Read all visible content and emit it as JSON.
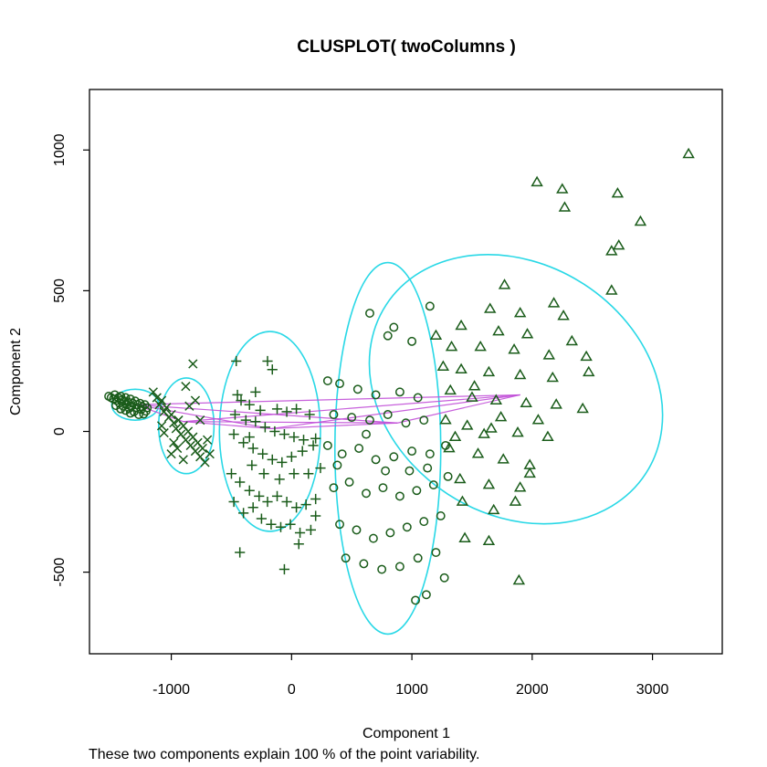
{
  "chart_data": {
    "type": "scatter",
    "title": "CLUSPLOT( twoColumns )",
    "xlabel": "Component 1",
    "ylabel": "Component 2",
    "subtitle": "These two components explain 100 % of the point variability.",
    "xlim": [
      -1680,
      3580
    ],
    "ylim": [
      -790,
      1215
    ],
    "x_ticks": [
      -1000,
      0,
      1000,
      2000,
      3000
    ],
    "x_tick_labels": [
      "-1000",
      "0",
      "1000",
      "2000",
      "3000"
    ],
    "y_ticks": [
      -500,
      0,
      500,
      1000
    ],
    "y_tick_labels": [
      "-500",
      "0",
      "500",
      "1000"
    ],
    "grid": false,
    "colors": {
      "points": "#1a5c1a",
      "ellipse": "#29d8e6",
      "link": "#c14fd8",
      "frame": "#000000"
    },
    "clusters": [
      {
        "marker": "circle",
        "center": [
          -1300,
          95
        ],
        "ellipse": {
          "cx": -1300,
          "cy": 95,
          "rx": 195,
          "ry": 55,
          "angle": 0
        },
        "points": [
          [
            -1520,
            125
          ],
          [
            -1500,
            120
          ],
          [
            -1480,
            115
          ],
          [
            -1470,
            130
          ],
          [
            -1455,
            110
          ],
          [
            -1440,
            120
          ],
          [
            -1430,
            100
          ],
          [
            -1420,
            125
          ],
          [
            -1410,
            112
          ],
          [
            -1400,
            90
          ],
          [
            -1390,
            108
          ],
          [
            -1380,
            120
          ],
          [
            -1370,
            95
          ],
          [
            -1360,
            105
          ],
          [
            -1350,
            82
          ],
          [
            -1340,
            115
          ],
          [
            -1330,
            90
          ],
          [
            -1320,
            100
          ],
          [
            -1310,
            70
          ],
          [
            -1300,
            108
          ],
          [
            -1290,
            85
          ],
          [
            -1280,
            95
          ],
          [
            -1270,
            60
          ],
          [
            -1260,
            100
          ],
          [
            -1250,
            78
          ],
          [
            -1240,
            88
          ],
          [
            -1230,
            62
          ],
          [
            -1220,
            95
          ],
          [
            -1210,
            72
          ],
          [
            -1200,
            84
          ],
          [
            -1380,
            75
          ],
          [
            -1340,
            65
          ],
          [
            -1460,
            92
          ],
          [
            -1420,
            80
          ]
        ]
      },
      {
        "marker": "x",
        "center": [
          -900,
          35
        ],
        "ellipse": {
          "cx": -875,
          "cy": 20,
          "rx": 230,
          "ry": 170,
          "angle": 0
        },
        "points": [
          [
            -1150,
            140
          ],
          [
            -1120,
            120
          ],
          [
            -1100,
            95
          ],
          [
            -1080,
            110
          ],
          [
            -1060,
            70
          ],
          [
            -1040,
            85
          ],
          [
            -1020,
            50
          ],
          [
            -1000,
            60
          ],
          [
            -980,
            30
          ],
          [
            -960,
            10
          ],
          [
            -940,
            40
          ],
          [
            -920,
            -10
          ],
          [
            -900,
            20
          ],
          [
            -880,
            -30
          ],
          [
            -860,
            0
          ],
          [
            -840,
            -50
          ],
          [
            -820,
            -20
          ],
          [
            -800,
            -70
          ],
          [
            -780,
            -40
          ],
          [
            -760,
            -90
          ],
          [
            -740,
            -60
          ],
          [
            -720,
            -110
          ],
          [
            -700,
            -30
          ],
          [
            -680,
            -80
          ],
          [
            -820,
            240
          ],
          [
            -880,
            160
          ],
          [
            -800,
            110
          ],
          [
            -950,
            -60
          ],
          [
            -1000,
            -80
          ],
          [
            -1080,
            20
          ],
          [
            -980,
            -40
          ],
          [
            -1060,
            -5
          ],
          [
            -900,
            -100
          ],
          [
            -760,
            40
          ],
          [
            -850,
            90
          ]
        ]
      },
      {
        "marker": "plus",
        "center": [
          -170,
          10
        ],
        "ellipse": {
          "cx": -180,
          "cy": 0,
          "rx": 420,
          "ry": 355,
          "angle": 0
        },
        "points": [
          [
            -460,
            250
          ],
          [
            -200,
            250
          ],
          [
            -160,
            220
          ],
          [
            -300,
            140
          ],
          [
            -420,
            110
          ],
          [
            -350,
            95
          ],
          [
            -260,
            75
          ],
          [
            -120,
            80
          ],
          [
            -40,
            70
          ],
          [
            40,
            80
          ],
          [
            150,
            60
          ],
          [
            -470,
            60
          ],
          [
            -380,
            40
          ],
          [
            -300,
            35
          ],
          [
            -220,
            15
          ],
          [
            -140,
            0
          ],
          [
            -60,
            -10
          ],
          [
            20,
            -20
          ],
          [
            100,
            -30
          ],
          [
            200,
            -25
          ],
          [
            -480,
            -10
          ],
          [
            -400,
            -40
          ],
          [
            -320,
            -60
          ],
          [
            -240,
            -80
          ],
          [
            -160,
            -100
          ],
          [
            -80,
            -110
          ],
          [
            0,
            -90
          ],
          [
            90,
            -70
          ],
          [
            180,
            -50
          ],
          [
            -500,
            -150
          ],
          [
            -430,
            -180
          ],
          [
            -350,
            -210
          ],
          [
            -270,
            -230
          ],
          [
            -200,
            -250
          ],
          [
            -120,
            -230
          ],
          [
            -40,
            -250
          ],
          [
            40,
            -270
          ],
          [
            120,
            -260
          ],
          [
            200,
            -240
          ],
          [
            -480,
            -250
          ],
          [
            -400,
            -290
          ],
          [
            -320,
            -270
          ],
          [
            -250,
            -310
          ],
          [
            -170,
            -330
          ],
          [
            -90,
            -340
          ],
          [
            -10,
            -330
          ],
          [
            70,
            -360
          ],
          [
            160,
            -350
          ],
          [
            -430,
            -430
          ],
          [
            -60,
            -490
          ],
          [
            60,
            -400
          ],
          [
            200,
            -300
          ],
          [
            -330,
            -120
          ],
          [
            -230,
            -150
          ],
          [
            -100,
            -170
          ],
          [
            20,
            -150
          ],
          [
            140,
            -150
          ],
          [
            240,
            -130
          ],
          [
            -450,
            130
          ],
          [
            -350,
            -20
          ]
        ]
      },
      {
        "marker": "circle",
        "center": [
          880,
          30
        ],
        "ellipse": {
          "cx": 800,
          "cy": -60,
          "rx": 440,
          "ry": 660,
          "angle": 0
        },
        "points": [
          [
            650,
            420
          ],
          [
            850,
            370
          ],
          [
            1150,
            445
          ],
          [
            800,
            340
          ],
          [
            1000,
            320
          ],
          [
            300,
            180
          ],
          [
            400,
            170
          ],
          [
            550,
            150
          ],
          [
            700,
            130
          ],
          [
            900,
            140
          ],
          [
            1050,
            120
          ],
          [
            350,
            60
          ],
          [
            500,
            50
          ],
          [
            650,
            40
          ],
          [
            800,
            60
          ],
          [
            950,
            30
          ],
          [
            1100,
            40
          ],
          [
            300,
            -50
          ],
          [
            420,
            -80
          ],
          [
            560,
            -60
          ],
          [
            700,
            -100
          ],
          [
            850,
            -90
          ],
          [
            1000,
            -70
          ],
          [
            1150,
            -80
          ],
          [
            1280,
            -50
          ],
          [
            350,
            -200
          ],
          [
            480,
            -180
          ],
          [
            620,
            -220
          ],
          [
            760,
            -200
          ],
          [
            900,
            -230
          ],
          [
            1040,
            -210
          ],
          [
            1180,
            -190
          ],
          [
            1300,
            -160
          ],
          [
            400,
            -330
          ],
          [
            540,
            -350
          ],
          [
            680,
            -380
          ],
          [
            820,
            -360
          ],
          [
            960,
            -340
          ],
          [
            1100,
            -320
          ],
          [
            1240,
            -300
          ],
          [
            450,
            -450
          ],
          [
            600,
            -470
          ],
          [
            750,
            -490
          ],
          [
            900,
            -480
          ],
          [
            1050,
            -450
          ],
          [
            1200,
            -430
          ],
          [
            1270,
            -520
          ],
          [
            1030,
            -600
          ],
          [
            1120,
            -580
          ],
          [
            380,
            -120
          ],
          [
            620,
            -10
          ],
          [
            780,
            -140
          ],
          [
            1130,
            -130
          ],
          [
            980,
            -140
          ]
        ]
      },
      {
        "marker": "triangle",
        "center": [
          1900,
          130
        ],
        "ellipse": {
          "cx": 1865,
          "cy": 150,
          "rx": 1040,
          "ry": 550,
          "angle": 57
        },
        "points": [
          [
            3300,
            985
          ],
          [
            2040,
            885
          ],
          [
            2250,
            860
          ],
          [
            2710,
            845
          ],
          [
            2270,
            795
          ],
          [
            2900,
            745
          ],
          [
            2720,
            660
          ],
          [
            2660,
            640
          ],
          [
            1770,
            520
          ],
          [
            2180,
            455
          ],
          [
            2660,
            500
          ],
          [
            1650,
            435
          ],
          [
            1900,
            420
          ],
          [
            2260,
            410
          ],
          [
            1410,
            375
          ],
          [
            1720,
            355
          ],
          [
            1960,
            345
          ],
          [
            1200,
            340
          ],
          [
            2330,
            320
          ],
          [
            1330,
            300
          ],
          [
            1570,
            300
          ],
          [
            1850,
            290
          ],
          [
            2140,
            270
          ],
          [
            2450,
            265
          ],
          [
            1260,
            230
          ],
          [
            1410,
            220
          ],
          [
            1640,
            210
          ],
          [
            1900,
            200
          ],
          [
            2170,
            190
          ],
          [
            2470,
            210
          ],
          [
            1320,
            145
          ],
          [
            1500,
            120
          ],
          [
            1700,
            110
          ],
          [
            1950,
            100
          ],
          [
            2200,
            95
          ],
          [
            2420,
            80
          ],
          [
            1280,
            40
          ],
          [
            1460,
            20
          ],
          [
            1660,
            10
          ],
          [
            1880,
            -5
          ],
          [
            2130,
            -20
          ],
          [
            1310,
            -60
          ],
          [
            1550,
            -80
          ],
          [
            1760,
            -100
          ],
          [
            1980,
            -120
          ],
          [
            1400,
            -170
          ],
          [
            1640,
            -190
          ],
          [
            1900,
            -200
          ],
          [
            1420,
            -250
          ],
          [
            1680,
            -280
          ],
          [
            1860,
            -250
          ],
          [
            1440,
            -380
          ],
          [
            1640,
            -390
          ],
          [
            1890,
            -530
          ],
          [
            1980,
            -150
          ],
          [
            1740,
            50
          ],
          [
            1520,
            160
          ],
          [
            2050,
            40
          ],
          [
            1600,
            -10
          ],
          [
            1360,
            -20
          ]
        ]
      }
    ]
  }
}
